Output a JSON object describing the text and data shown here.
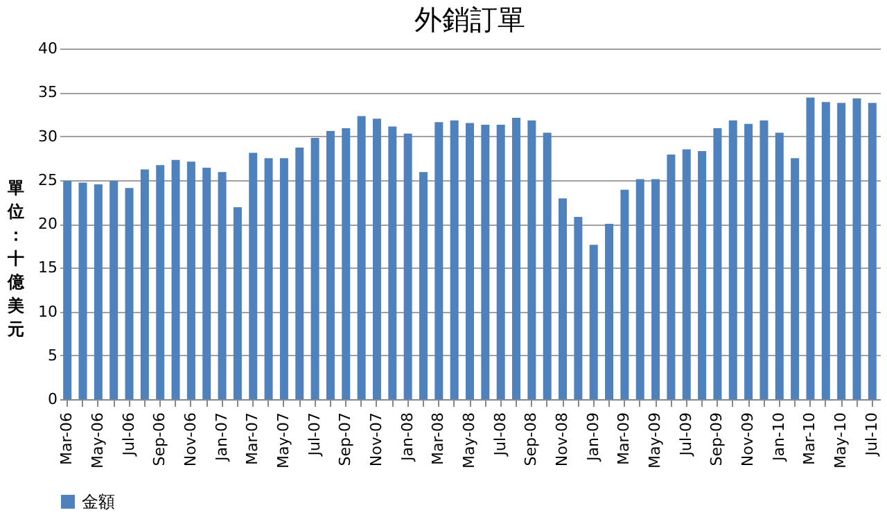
{
  "chart_data": {
    "type": "bar",
    "title": "外銷訂單",
    "ylabel": "單位：十億美元",
    "categories": [
      "Mar-06",
      null,
      "May-06",
      null,
      "Jul-06",
      null,
      "Sep-06",
      null,
      "Nov-06",
      null,
      "Jan-07",
      null,
      "Mar-07",
      null,
      "May-07",
      null,
      "Jul-07",
      null,
      "Sep-07",
      null,
      "Nov-07",
      null,
      "Jan-08",
      null,
      "Mar-08",
      null,
      "May-08",
      null,
      "Jul-08",
      null,
      "Sep-08",
      null,
      "Nov-08",
      null,
      "Jan-09",
      null,
      "Mar-09",
      null,
      "May-09",
      null,
      "Jul-09",
      null,
      "Sep-09",
      null,
      "Nov-09",
      null,
      "Jan-10",
      null,
      "Mar-10",
      null,
      "May-10",
      null,
      "Jul-10"
    ],
    "series": [
      {
        "name": "金額",
        "color": "#4f81bd",
        "values": [
          24.9,
          24.7,
          24.5,
          24.9,
          24.1,
          26.2,
          26.7,
          27.3,
          27.1,
          26.4,
          25.9,
          21.9,
          28.1,
          27.5,
          27.5,
          28.7,
          29.8,
          30.6,
          30.9,
          32.3,
          32.0,
          31.1,
          30.3,
          25.9,
          31.6,
          31.8,
          31.5,
          31.3,
          31.3,
          32.1,
          31.8,
          30.4,
          22.9,
          20.8,
          17.6,
          20.0,
          23.9,
          25.1,
          25.1,
          27.9,
          28.5,
          28.3,
          30.9,
          31.8,
          31.4,
          31.8,
          30.4,
          27.5,
          34.4,
          33.9,
          33.8,
          34.3,
          33.8
        ]
      }
    ],
    "ylim": [
      0,
      40
    ],
    "yticks": [
      0,
      5,
      10,
      15,
      20,
      25,
      30,
      35,
      40
    ],
    "grid": "y",
    "legend": "bottom"
  }
}
